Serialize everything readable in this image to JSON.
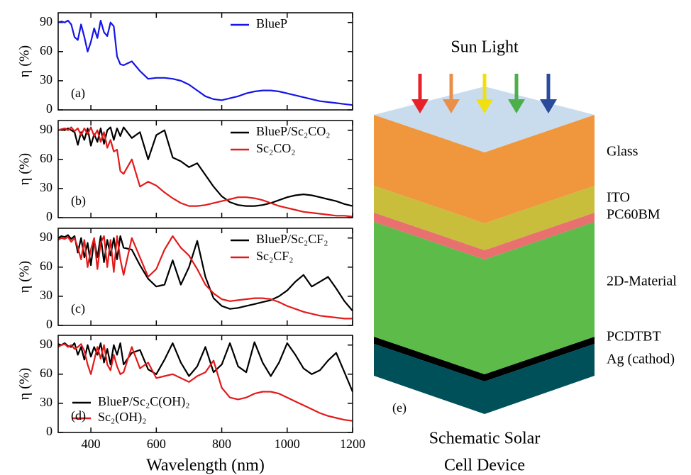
{
  "chart_data": [
    {
      "type": "line",
      "panel_label": "(a)",
      "ylabel": "η (%)",
      "legend": "upper right",
      "show_xtick_labels": false,
      "xlim": [
        300,
        1200
      ],
      "ylim": [
        0,
        100
      ],
      "xticks": [
        400,
        600,
        800,
        1000,
        1200
      ],
      "yticks": [
        0,
        30,
        60,
        90
      ],
      "x": [
        300,
        310,
        320,
        330,
        340,
        350,
        360,
        370,
        380,
        390,
        400,
        410,
        420,
        430,
        440,
        450,
        460,
        470,
        480,
        490,
        500,
        525,
        550,
        575,
        600,
        625,
        650,
        675,
        700,
        725,
        750,
        775,
        800,
        825,
        850,
        875,
        900,
        925,
        950,
        975,
        1000,
        1025,
        1050,
        1075,
        1100,
        1125,
        1150,
        1175,
        1200
      ],
      "series": [
        {
          "name": "BlueP",
          "color": "#1515e6",
          "values": [
            90,
            91,
            90,
            92,
            88,
            75,
            72,
            88,
            75,
            60,
            70,
            84,
            74,
            92,
            80,
            76,
            90,
            86,
            55,
            47,
            46,
            50,
            40,
            32,
            33,
            33,
            32,
            30,
            26,
            20,
            14,
            11,
            10,
            12,
            14,
            17,
            19,
            20,
            20,
            19,
            17,
            15,
            13,
            11,
            9,
            8,
            7,
            6,
            5
          ]
        }
      ]
    },
    {
      "type": "line",
      "panel_label": "(b)",
      "ylabel": "η (%)",
      "legend": "upper right",
      "show_xtick_labels": false,
      "xlim": [
        300,
        1200
      ],
      "ylim": [
        0,
        100
      ],
      "xticks": [
        400,
        600,
        800,
        1000,
        1200
      ],
      "yticks": [
        0,
        30,
        60,
        90
      ],
      "x": [
        300,
        310,
        320,
        330,
        340,
        350,
        360,
        370,
        380,
        390,
        400,
        410,
        420,
        430,
        440,
        450,
        460,
        470,
        480,
        490,
        500,
        525,
        550,
        575,
        600,
        625,
        650,
        675,
        700,
        725,
        750,
        775,
        800,
        825,
        850,
        875,
        900,
        925,
        950,
        975,
        1000,
        1025,
        1050,
        1075,
        1100,
        1125,
        1150,
        1175,
        1200
      ],
      "series": [
        {
          "name": "BlueP/Sc₂CO₂",
          "color": "#000000",
          "values": [
            90,
            91,
            90,
            92,
            90,
            88,
            75,
            88,
            80,
            92,
            74,
            86,
            78,
            92,
            76,
            90,
            93,
            80,
            92,
            84,
            93,
            82,
            88,
            60,
            85,
            90,
            62,
            58,
            52,
            56,
            44,
            32,
            22,
            16,
            13,
            12,
            12,
            13,
            15,
            18,
            21,
            23,
            24,
            23,
            21,
            19,
            17,
            14,
            12
          ]
        },
        {
          "name": "Sc₂CO₂",
          "color": "#e31a1a",
          "values": [
            90,
            91,
            92,
            90,
            93,
            89,
            92,
            85,
            92,
            86,
            93,
            84,
            90,
            78,
            88,
            72,
            80,
            68,
            70,
            48,
            45,
            60,
            32,
            37,
            33,
            26,
            20,
            15,
            12,
            12,
            13,
            15,
            17,
            19,
            21,
            21,
            20,
            18,
            15,
            12,
            10,
            8,
            6,
            5,
            4,
            3,
            2,
            2,
            1
          ]
        }
      ]
    },
    {
      "type": "line",
      "panel_label": "(c)",
      "ylabel": "η (%)",
      "legend": "upper right",
      "show_xtick_labels": false,
      "xlim": [
        300,
        1200
      ],
      "ylim": [
        0,
        100
      ],
      "xticks": [
        400,
        600,
        800,
        1000,
        1200
      ],
      "yticks": [
        0,
        30,
        60,
        90
      ],
      "x": [
        300,
        310,
        320,
        330,
        340,
        350,
        360,
        370,
        380,
        390,
        400,
        410,
        420,
        430,
        440,
        450,
        460,
        470,
        480,
        490,
        500,
        525,
        550,
        575,
        600,
        625,
        650,
        675,
        700,
        725,
        750,
        775,
        800,
        825,
        850,
        875,
        900,
        925,
        950,
        975,
        1000,
        1025,
        1050,
        1075,
        1100,
        1125,
        1150,
        1175,
        1200
      ],
      "series": [
        {
          "name": "BlueP/Sc₂CF₂",
          "color": "#000000",
          "values": [
            90,
            92,
            91,
            93,
            89,
            92,
            75,
            90,
            70,
            85,
            62,
            88,
            70,
            92,
            65,
            88,
            72,
            90,
            68,
            92,
            80,
            78,
            62,
            48,
            40,
            42,
            67,
            42,
            60,
            87,
            50,
            28,
            20,
            17,
            18,
            20,
            22,
            24,
            26,
            30,
            36,
            45,
            52,
            40,
            45,
            50,
            38,
            25,
            15
          ]
        },
        {
          "name": "Sc₂CF₂",
          "color": "#e31a1a",
          "values": [
            88,
            90,
            89,
            91,
            86,
            90,
            80,
            68,
            88,
            60,
            78,
            90,
            58,
            85,
            92,
            60,
            88,
            55,
            92,
            68,
            52,
            90,
            70,
            50,
            58,
            78,
            92,
            80,
            72,
            58,
            42,
            33,
            27,
            25,
            26,
            27,
            28,
            28,
            27,
            24,
            20,
            17,
            14,
            12,
            10,
            9,
            8,
            7,
            7
          ]
        }
      ]
    },
    {
      "type": "line",
      "panel_label": "(d)",
      "ylabel": "η (%)",
      "xlabel": "Wavelength (nm)",
      "legend": "lower left",
      "show_xtick_labels": true,
      "xlim": [
        300,
        1200
      ],
      "ylim": [
        0,
        100
      ],
      "xticks": [
        400,
        600,
        800,
        1000,
        1200
      ],
      "yticks": [
        0,
        30,
        60,
        90
      ],
      "x": [
        300,
        310,
        320,
        330,
        340,
        350,
        360,
        370,
        380,
        390,
        400,
        410,
        420,
        430,
        440,
        450,
        460,
        470,
        480,
        490,
        500,
        525,
        550,
        575,
        600,
        625,
        650,
        675,
        700,
        725,
        750,
        775,
        800,
        825,
        850,
        875,
        900,
        925,
        950,
        975,
        1000,
        1025,
        1050,
        1075,
        1100,
        1125,
        1150,
        1175,
        1200
      ],
      "series": [
        {
          "name": "BlueP/Sc₂C(OH)₂",
          "color": "#000000",
          "values": [
            91,
            90,
            92,
            89,
            88,
            92,
            80,
            88,
            75,
            90,
            78,
            88,
            80,
            92,
            72,
            86,
            70,
            90,
            80,
            92,
            70,
            82,
            85,
            65,
            60,
            75,
            92,
            72,
            58,
            68,
            88,
            62,
            70,
            92,
            68,
            62,
            93,
            72,
            58,
            72,
            92,
            80,
            66,
            60,
            64,
            74,
            82,
            62,
            42
          ]
        },
        {
          "name": "Sc₂(OH)₂",
          "color": "#e31a1a",
          "values": [
            88,
            90,
            91,
            88,
            90,
            86,
            88,
            91,
            84,
            70,
            60,
            74,
            88,
            76,
            90,
            70,
            64,
            80,
            68,
            60,
            62,
            88,
            66,
            72,
            56,
            58,
            60,
            56,
            52,
            58,
            62,
            74,
            46,
            36,
            34,
            36,
            40,
            42,
            42,
            40,
            36,
            32,
            28,
            24,
            20,
            17,
            15,
            13,
            12
          ]
        }
      ]
    }
  ],
  "schematic": {
    "title": "Sun Light",
    "panel_label": "(e)",
    "layers": [
      "Glass",
      "ITO",
      "PC60BM",
      "2D-Material",
      "PCDTBT",
      "Ag (cathod)"
    ],
    "caption": [
      "Schematic Solar",
      "Cell Device"
    ]
  }
}
